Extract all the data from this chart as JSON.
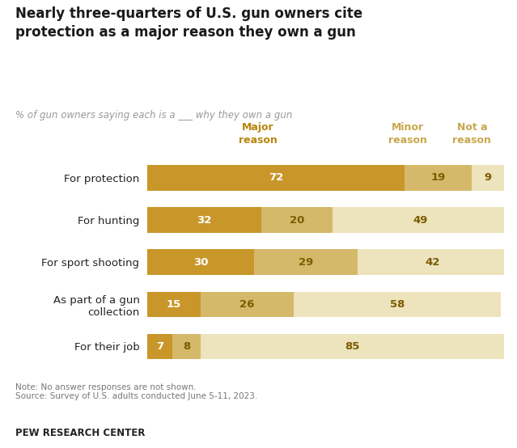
{
  "title": "Nearly three-quarters of U.S. gun owners cite\nprotection as a major reason they own a gun",
  "subtitle": "% of gun owners saying each is a ___ why they own a gun",
  "categories": [
    "For protection",
    "For hunting",
    "For sport shooting",
    "As part of a gun\ncollection",
    "For their job"
  ],
  "major": [
    72,
    32,
    30,
    15,
    7
  ],
  "minor": [
    19,
    20,
    29,
    26,
    8
  ],
  "not_a_reason": [
    9,
    49,
    42,
    58,
    85
  ],
  "color_major": "#C9962A",
  "color_minor": "#D4B96A",
  "color_not": "#EDE3BC",
  "header_major": "Major\nreason",
  "header_minor": "Minor\nreason",
  "header_not": "Not a\nreason",
  "header_color_major": "#B8860B",
  "header_color_minor": "#C8A84C",
  "header_color_not": "#C8A84C",
  "label_color_major": "#FFFFFF",
  "label_color_other": "#7a5c00",
  "note": "Note: No answer responses are not shown.\nSource: Survey of U.S. adults conducted June 5-11, 2023.",
  "footer": "PEW RESEARCH CENTER",
  "background_color": "#FFFFFF"
}
